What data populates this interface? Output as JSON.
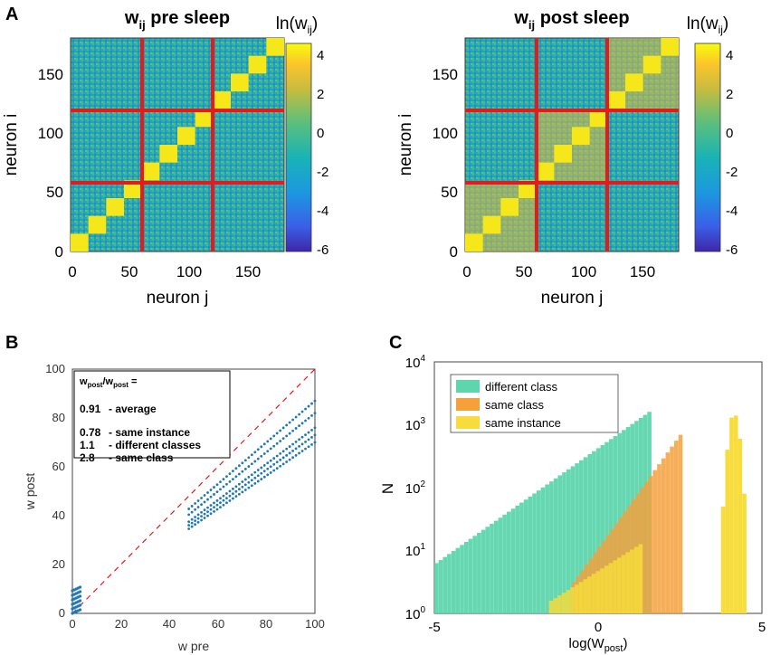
{
  "panel_labels": {
    "a": "A",
    "b": "B",
    "c": "C"
  },
  "colors": {
    "red_separator": "#e41a1c",
    "scatter_point": "#1f77b4",
    "different_class": "#5dd6ad",
    "same_class": "#f6a03c",
    "same_instance": "#f7dc3b",
    "identity_line": "#e41a1c"
  },
  "chart_data": [
    {
      "id": "heatmap_pre",
      "type": "heatmap",
      "title_main": "w",
      "title_sub": "ij",
      "title_rest": " pre sleep",
      "xlabel": "neuron j",
      "ylabel": "neuron i",
      "xlim": [
        0,
        180
      ],
      "ylim": [
        0,
        180
      ],
      "xticks": [
        "0",
        "50",
        "100",
        "150"
      ],
      "yticks": [
        "0",
        "50",
        "100",
        "150"
      ],
      "separators": [
        60,
        120
      ],
      "diagonal_blocks": [
        {
          "start": 0,
          "end": 15,
          "value": 4
        },
        {
          "start": 15,
          "end": 30,
          "value": 4
        },
        {
          "start": 30,
          "end": 45,
          "value": 4
        },
        {
          "start": 45,
          "end": 60,
          "value": 4
        },
        {
          "start": 60,
          "end": 75,
          "value": 4
        },
        {
          "start": 75,
          "end": 90,
          "value": 4
        },
        {
          "start": 90,
          "end": 105,
          "value": 4
        },
        {
          "start": 105,
          "end": 120,
          "value": 4
        },
        {
          "start": 120,
          "end": 135,
          "value": 4
        },
        {
          "start": 135,
          "end": 150,
          "value": 4
        },
        {
          "start": 150,
          "end": 165,
          "value": 4
        },
        {
          "start": 165,
          "end": 180,
          "value": 4
        }
      ],
      "colorbar": {
        "label_main": "ln(w",
        "label_sub": "ij",
        "label_end": ")",
        "range": [
          -6,
          4.6
        ],
        "ticks": [
          "4",
          "2",
          "0",
          "-2",
          "-4",
          "-6"
        ]
      }
    },
    {
      "id": "heatmap_post",
      "type": "heatmap",
      "title_main": "w",
      "title_sub": "ij",
      "title_rest": " post sleep",
      "xlabel": "neuron j",
      "ylabel": "neuron i",
      "xlim": [
        0,
        180
      ],
      "ylim": [
        0,
        180
      ],
      "xticks": [
        "0",
        "50",
        "100",
        "150"
      ],
      "yticks": [
        "0",
        "50",
        "100",
        "150"
      ],
      "separators": [
        60,
        120
      ],
      "colorbar": {
        "label_main": "ln(w",
        "label_sub": "ij",
        "label_end": ")",
        "range": [
          -6,
          4.6
        ],
        "ticks": [
          "4",
          "2",
          "0",
          "-2",
          "-4",
          "-6"
        ]
      }
    },
    {
      "id": "scatter",
      "type": "scatter",
      "xlabel": "w pre",
      "ylabel": "w post",
      "xlim": [
        0,
        100
      ],
      "ylim": [
        0,
        100
      ],
      "xticks": [
        "0",
        "20",
        "40",
        "60",
        "80",
        "100"
      ],
      "yticks": [
        "0",
        "20",
        "40",
        "60",
        "80",
        "100"
      ],
      "series": [
        {
          "x_range": [
            0,
            4
          ],
          "y_range": [
            0,
            11
          ]
        },
        {
          "x_range": [
            48,
            100
          ],
          "slopes": [
            0.85,
            0.8,
            0.74,
            0.71,
            0.68
          ]
        }
      ],
      "annotation": {
        "header_a": "w",
        "header_a_sub": "post",
        "header_b": "/w",
        "header_b_sub": "post",
        "header_end": " =",
        "rows": [
          {
            "value": "0.91",
            "label": "- average"
          },
          {
            "value": "0.78",
            "label": "- same instance"
          },
          {
            "value": "1.1",
            "label": "- different classes"
          },
          {
            "value": "2.8",
            "label": "- same class"
          }
        ]
      }
    },
    {
      "id": "histogram",
      "type": "bar",
      "xlabel_main": "log(W",
      "xlabel_sub": "post",
      "xlabel_end": ")",
      "ylabel": "N",
      "xlim": [
        -5,
        5
      ],
      "ylim_log10": [
        0,
        4
      ],
      "xticks": [
        "-5",
        "0",
        "5"
      ],
      "yticks": [
        {
          "base": "10",
          "exp": "0"
        },
        {
          "base": "10",
          "exp": "1"
        },
        {
          "base": "10",
          "exp": "2"
        },
        {
          "base": "10",
          "exp": "3"
        },
        {
          "base": "10",
          "exp": "4"
        }
      ],
      "series": [
        {
          "name": "different class",
          "x_range": [
            -5,
            1.5
          ],
          "peak": 2500
        },
        {
          "name": "same class",
          "x_range": [
            -0.8,
            2.5
          ],
          "peak": 800
        },
        {
          "name": "same instance",
          "x_range": [
            -1.5,
            4.5
          ],
          "peak": 1400
        }
      ]
    }
  ]
}
